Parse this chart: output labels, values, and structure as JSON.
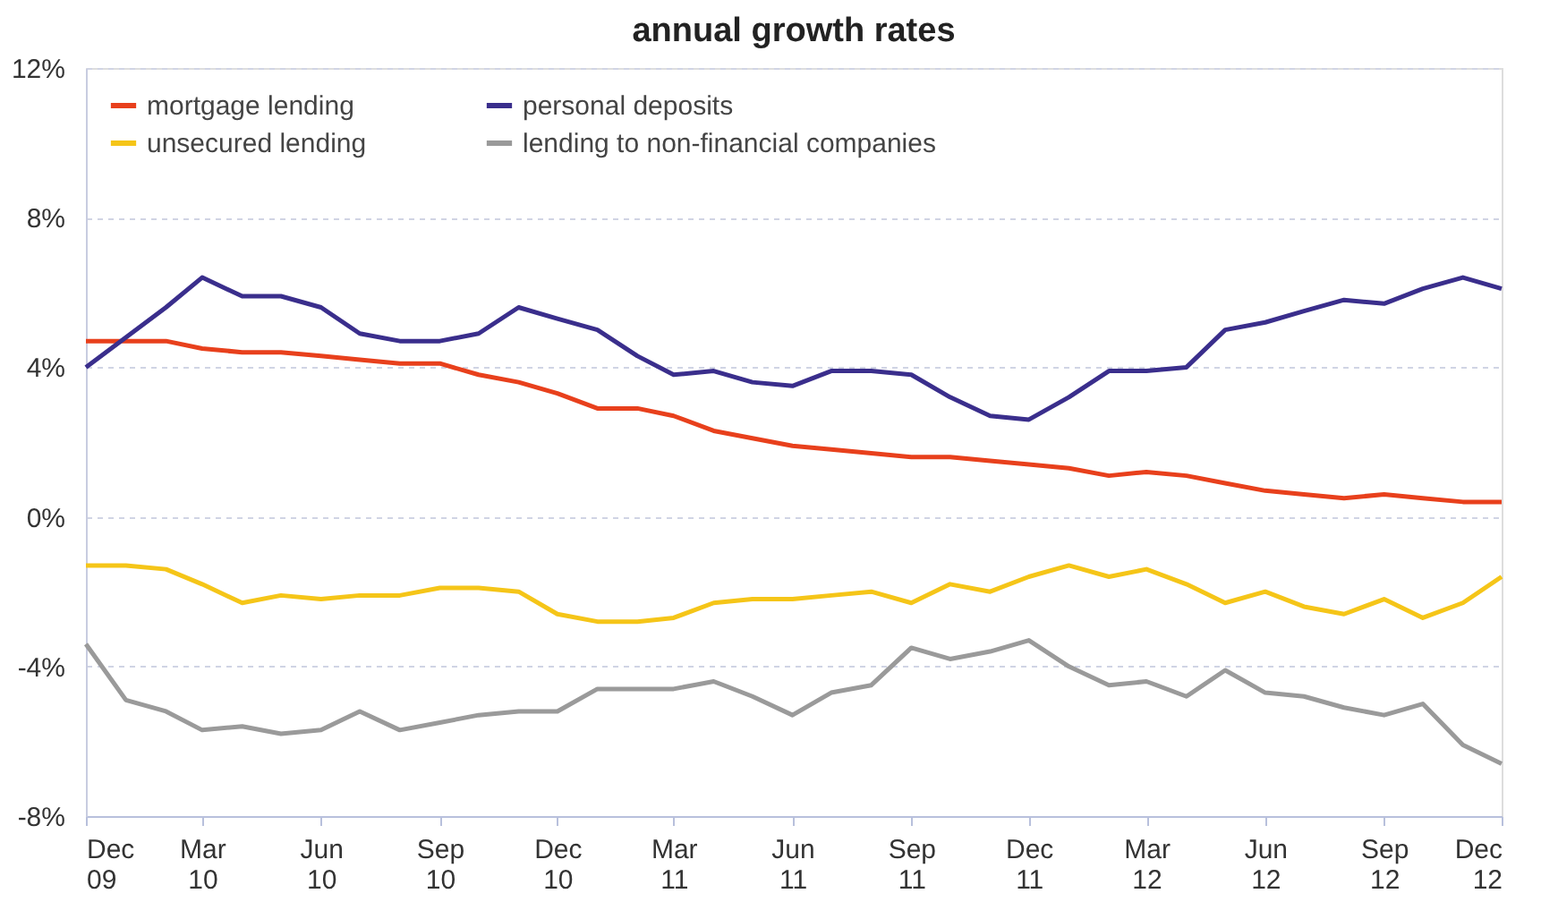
{
  "chart_data": {
    "type": "line",
    "title": "annual growth rates",
    "x": [
      "2009-12",
      "2010-01",
      "2010-02",
      "2010-03",
      "2010-04",
      "2010-05",
      "2010-06",
      "2010-07",
      "2010-08",
      "2010-09",
      "2010-10",
      "2010-11",
      "2010-12",
      "2011-01",
      "2011-02",
      "2011-03",
      "2011-04",
      "2011-05",
      "2011-06",
      "2011-07",
      "2011-08",
      "2011-09",
      "2011-10",
      "2011-11",
      "2011-12",
      "2012-01",
      "2012-02",
      "2012-03",
      "2012-04",
      "2012-05",
      "2012-06",
      "2012-07",
      "2012-08",
      "2012-09",
      "2012-10",
      "2012-11",
      "2012-12"
    ],
    "xlim": [
      "2009-12",
      "2012-12"
    ],
    "xticks": [
      {
        "value": "2009-12",
        "label": "Dec 09"
      },
      {
        "value": "2010-03",
        "label": "Mar 10"
      },
      {
        "value": "2010-06",
        "label": "Jun 10"
      },
      {
        "value": "2010-09",
        "label": "Sep 10"
      },
      {
        "value": "2010-12",
        "label": "Dec 10"
      },
      {
        "value": "2011-03",
        "label": "Mar 11"
      },
      {
        "value": "2011-06",
        "label": "Jun 11"
      },
      {
        "value": "2011-09",
        "label": "Sep 11"
      },
      {
        "value": "2011-12",
        "label": "Dec 11"
      },
      {
        "value": "2012-03",
        "label": "Mar 12"
      },
      {
        "value": "2012-06",
        "label": "Jun 12"
      },
      {
        "value": "2012-09",
        "label": "Sep 12"
      },
      {
        "value": "2012-12",
        "label": "Dec 12"
      }
    ],
    "series": [
      {
        "name": "mortgage lending",
        "color": "#e8401c",
        "values": [
          4.7,
          4.7,
          4.7,
          4.5,
          4.4,
          4.4,
          4.3,
          4.2,
          4.1,
          4.1,
          3.8,
          3.6,
          3.3,
          2.9,
          2.9,
          2.7,
          2.3,
          2.1,
          1.9,
          1.8,
          1.7,
          1.6,
          1.6,
          1.5,
          1.4,
          1.3,
          1.1,
          1.2,
          1.1,
          0.9,
          0.7,
          0.6,
          0.5,
          0.6,
          0.5,
          0.4,
          0.4
        ]
      },
      {
        "name": "unsecured lending",
        "color": "#f5c518",
        "values": [
          -1.3,
          -1.3,
          -1.4,
          -1.8,
          -2.3,
          -2.1,
          -2.2,
          -2.1,
          -2.1,
          -1.9,
          -1.9,
          -2.0,
          -2.6,
          -2.8,
          -2.8,
          -2.7,
          -2.3,
          -2.2,
          -2.2,
          -2.1,
          -2.0,
          -2.3,
          -1.8,
          -2.0,
          -1.6,
          -1.3,
          -1.6,
          -1.4,
          -1.8,
          -2.3,
          -2.0,
          -2.4,
          -2.6,
          -2.2,
          -2.7,
          -2.3,
          -1.6
        ]
      },
      {
        "name": "personal deposits",
        "color": "#3a2e8c",
        "values": [
          4.0,
          4.8,
          5.6,
          6.4,
          5.9,
          5.9,
          5.6,
          4.9,
          4.7,
          4.7,
          4.9,
          5.6,
          5.3,
          5.0,
          4.3,
          3.8,
          3.9,
          3.6,
          3.5,
          3.9,
          3.9,
          3.8,
          3.2,
          2.7,
          2.6,
          3.2,
          3.9,
          3.9,
          4.0,
          5.0,
          5.2,
          5.5,
          5.8,
          5.7,
          6.1,
          6.4,
          6.1
        ]
      },
      {
        "name": "lending to non-financial companies",
        "color": "#9a9a9a",
        "values": [
          -3.4,
          -4.9,
          -5.2,
          -5.7,
          -5.6,
          -5.8,
          -5.7,
          -5.2,
          -5.7,
          -5.5,
          -5.3,
          -5.2,
          -5.2,
          -4.6,
          -4.6,
          -4.6,
          -4.4,
          -4.8,
          -5.3,
          -4.7,
          -4.5,
          -3.5,
          -3.8,
          -3.6,
          -3.3,
          -4.0,
          -4.5,
          -4.4,
          -4.8,
          -4.1,
          -4.7,
          -4.8,
          -5.1,
          -5.3,
          -5.0,
          -6.1,
          -6.6
        ]
      }
    ],
    "ylim": [
      -8,
      12
    ],
    "yticks": [
      {
        "value": -8,
        "label": "-8%"
      },
      {
        "value": -4,
        "label": "-4%"
      },
      {
        "value": 0,
        "label": "0%"
      },
      {
        "value": 4,
        "label": "4%"
      },
      {
        "value": 8,
        "label": "8%"
      },
      {
        "value": 12,
        "label": "12%"
      }
    ],
    "grid": "y",
    "legend": "top",
    "marker": "none",
    "line_style": "solid"
  }
}
